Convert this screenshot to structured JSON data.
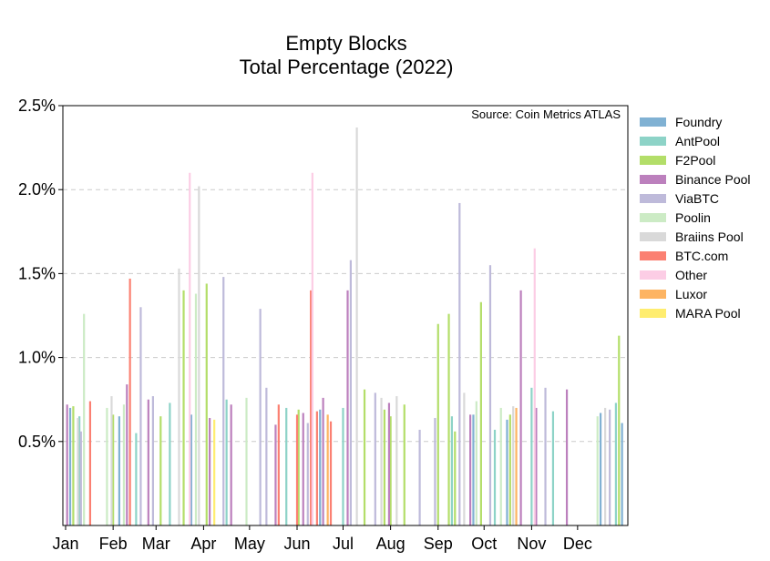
{
  "chart_data": {
    "type": "bar",
    "title_lines": [
      "Empty Blocks",
      "Total Percentage (2022)"
    ],
    "source_note": "Source: Coin Metrics ATLAS",
    "xlabel": "",
    "ylabel": "",
    "ylim": [
      0.0,
      2.5
    ],
    "y_ticks": [
      {
        "value": 0.5,
        "label": "0.5%"
      },
      {
        "value": 1.0,
        "label": "1.0%"
      },
      {
        "value": 1.5,
        "label": "1.5%"
      },
      {
        "value": 2.0,
        "label": "2.0%"
      },
      {
        "value": 2.5,
        "label": "2.5%"
      }
    ],
    "x_ticks": [
      {
        "date": "2022-01-01",
        "label": "Jan"
      },
      {
        "date": "2022-02-01",
        "label": "Feb"
      },
      {
        "date": "2022-03-01",
        "label": "Mar"
      },
      {
        "date": "2022-04-01",
        "label": "Apr"
      },
      {
        "date": "2022-05-01",
        "label": "May"
      },
      {
        "date": "2022-06-01",
        "label": "Jun"
      },
      {
        "date": "2022-07-01",
        "label": "Jul"
      },
      {
        "date": "2022-08-01",
        "label": "Aug"
      },
      {
        "date": "2022-09-01",
        "label": "Sep"
      },
      {
        "date": "2022-10-01",
        "label": "Oct"
      },
      {
        "date": "2022-11-01",
        "label": "Nov"
      },
      {
        "date": "2022-12-01",
        "label": "Dec"
      }
    ],
    "xlim": [
      "2022-01-01",
      "2023-01-01"
    ],
    "grid": "horizontal dashed",
    "legend_position": "outside right",
    "series": [
      {
        "name": "Foundry",
        "color": "#80b1d3",
        "points": [
          [
            "2022-01-04",
            0.7
          ],
          [
            "2022-02-05",
            0.65
          ],
          [
            "2022-03-24",
            0.66
          ],
          [
            "2022-06-16",
            0.69
          ],
          [
            "2022-09-24",
            0.66
          ],
          [
            "2022-10-16",
            0.63
          ],
          [
            "2022-12-16",
            0.67
          ],
          [
            "2022-12-30",
            0.61
          ]
        ]
      },
      {
        "name": "AntPool",
        "color": "#8dd3c7",
        "points": [
          [
            "2022-01-10",
            0.65
          ],
          [
            "2022-02-16",
            0.55
          ],
          [
            "2022-03-10",
            0.73
          ],
          [
            "2022-04-16",
            0.75
          ],
          [
            "2022-05-25",
            0.7
          ],
          [
            "2022-07-01",
            0.7
          ],
          [
            "2022-09-10",
            0.65
          ],
          [
            "2022-10-08",
            0.57
          ],
          [
            "2022-11-01",
            0.82
          ],
          [
            "2022-11-15",
            0.68
          ],
          [
            "2022-12-26",
            0.73
          ]
        ]
      },
      {
        "name": "F2Pool",
        "color": "#b3de69",
        "points": [
          [
            "2022-01-06",
            0.71
          ],
          [
            "2022-02-01",
            0.66
          ],
          [
            "2022-03-04",
            0.65
          ],
          [
            "2022-03-19",
            1.4
          ],
          [
            "2022-04-03",
            1.44
          ],
          [
            "2022-06-02",
            0.69
          ],
          [
            "2022-07-15",
            0.81
          ],
          [
            "2022-07-28",
            0.69
          ],
          [
            "2022-08-01",
            0.65
          ],
          [
            "2022-08-10",
            0.72
          ],
          [
            "2022-09-01",
            1.2
          ],
          [
            "2022-09-08",
            1.26
          ],
          [
            "2022-09-12",
            0.56
          ],
          [
            "2022-09-29",
            1.33
          ],
          [
            "2022-10-18",
            0.66
          ],
          [
            "2022-12-28",
            1.13
          ]
        ]
      },
      {
        "name": "Binance Pool",
        "color": "#bc80bd",
        "points": [
          [
            "2022-01-02",
            0.72
          ],
          [
            "2022-02-10",
            0.84
          ],
          [
            "2022-02-24",
            0.75
          ],
          [
            "2022-04-05",
            0.64
          ],
          [
            "2022-04-19",
            0.72
          ],
          [
            "2022-05-18",
            0.6
          ],
          [
            "2022-06-05",
            0.67
          ],
          [
            "2022-06-18",
            0.76
          ],
          [
            "2022-07-04",
            1.4
          ],
          [
            "2022-07-31",
            0.73
          ],
          [
            "2022-09-22",
            0.66
          ],
          [
            "2022-10-25",
            1.4
          ],
          [
            "2022-11-04",
            0.7
          ],
          [
            "2022-11-24",
            0.81
          ]
        ]
      },
      {
        "name": "ViaBTC",
        "color": "#bebada",
        "points": [
          [
            "2022-01-11",
            0.56
          ],
          [
            "2022-02-19",
            1.3
          ],
          [
            "2022-02-27",
            0.77
          ],
          [
            "2022-04-14",
            1.48
          ],
          [
            "2022-05-08",
            1.29
          ],
          [
            "2022-05-12",
            0.82
          ],
          [
            "2022-06-08",
            0.61
          ],
          [
            "2022-07-06",
            1.58
          ],
          [
            "2022-07-22",
            0.79
          ],
          [
            "2022-08-20",
            0.57
          ],
          [
            "2022-08-30",
            0.64
          ],
          [
            "2022-09-15",
            1.92
          ],
          [
            "2022-10-05",
            1.55
          ],
          [
            "2022-11-10",
            0.82
          ],
          [
            "2022-12-22",
            0.69
          ]
        ]
      },
      {
        "name": "Poolin",
        "color": "#ccebc5",
        "points": [
          [
            "2022-01-13",
            1.26
          ],
          [
            "2022-01-28",
            0.7
          ],
          [
            "2022-02-08",
            0.72
          ],
          [
            "2022-03-27",
            1.38
          ],
          [
            "2022-04-29",
            0.76
          ],
          [
            "2022-09-26",
            0.74
          ],
          [
            "2022-10-12",
            0.7
          ],
          [
            "2022-12-14",
            0.65
          ]
        ]
      },
      {
        "name": "Braiins Pool",
        "color": "#d9d9d9",
        "points": [
          [
            "2022-01-09",
            0.64
          ],
          [
            "2022-01-31",
            0.77
          ],
          [
            "2022-03-16",
            1.53
          ],
          [
            "2022-03-29",
            2.02
          ],
          [
            "2022-07-10",
            2.37
          ],
          [
            "2022-07-26",
            0.76
          ],
          [
            "2022-08-05",
            0.77
          ],
          [
            "2022-09-18",
            0.79
          ],
          [
            "2022-10-20",
            0.71
          ],
          [
            "2022-12-19",
            0.7
          ]
        ]
      },
      {
        "name": "BTC.com",
        "color": "#fb8072",
        "points": [
          [
            "2022-01-17",
            0.74
          ],
          [
            "2022-02-12",
            1.47
          ],
          [
            "2022-05-20",
            0.72
          ],
          [
            "2022-06-01",
            0.66
          ],
          [
            "2022-06-10",
            1.4
          ],
          [
            "2022-06-14",
            0.68
          ],
          [
            "2022-06-23",
            0.62
          ]
        ]
      },
      {
        "name": "Other",
        "color": "#fccde5",
        "points": [
          [
            "2022-03-23",
            2.1
          ],
          [
            "2022-06-11",
            2.1
          ],
          [
            "2022-11-03",
            1.65
          ]
        ]
      },
      {
        "name": "Luxor",
        "color": "#fdb462",
        "points": [
          [
            "2022-06-21",
            0.66
          ],
          [
            "2022-10-22",
            0.7
          ]
        ]
      },
      {
        "name": "MARA Pool",
        "color": "#ffed6f",
        "points": [
          [
            "2022-04-08",
            0.63
          ]
        ]
      }
    ]
  }
}
